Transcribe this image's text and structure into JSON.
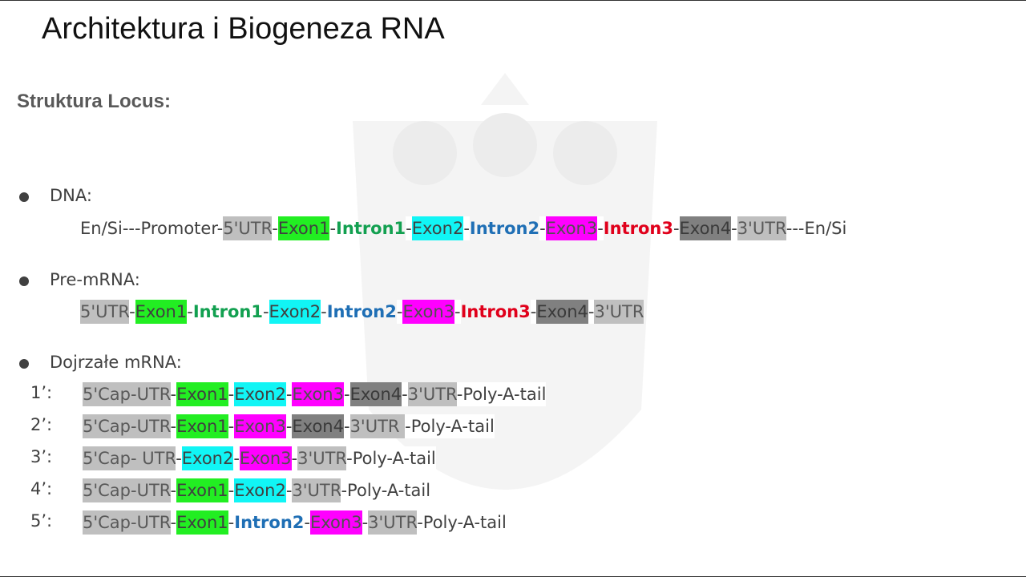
{
  "title": "Architektura i Biogeneza RNA",
  "subtitle": "Struktura Locus:",
  "sections": [
    {
      "heading": "DNA:",
      "rows": [
        {
          "segments": [
            {
              "text": "En/Si---Promoter-",
              "kind": "plain"
            },
            {
              "text": "5'UTR",
              "kind": "utr"
            },
            {
              "text": "-",
              "kind": "plain"
            },
            {
              "text": "Exon1",
              "kind": "exon1"
            },
            {
              "text": "-",
              "kind": "plain"
            },
            {
              "text": "Intron1",
              "kind": "intron1"
            },
            {
              "text": "-",
              "kind": "plain"
            },
            {
              "text": "Exon2",
              "kind": "exon2"
            },
            {
              "text": "-",
              "kind": "plain"
            },
            {
              "text": "Intron2",
              "kind": "intron2"
            },
            {
              "text": "-",
              "kind": "plain"
            },
            {
              "text": "Exon3",
              "kind": "exon3"
            },
            {
              "text": "-",
              "kind": "plain"
            },
            {
              "text": "Intron3",
              "kind": "intron3"
            },
            {
              "text": "-",
              "kind": "plain"
            },
            {
              "text": "Exon4",
              "kind": "exon4"
            },
            {
              "text": "-",
              "kind": "plain"
            },
            {
              "text": "3'UTR",
              "kind": "utr"
            },
            {
              "text": "---En/Si",
              "kind": "plain"
            }
          ]
        }
      ]
    },
    {
      "heading": "Pre-mRNA:",
      "rows": [
        {
          "segments": [
            {
              "text": "5'UTR",
              "kind": "utr"
            },
            {
              "text": "-",
              "kind": "plain"
            },
            {
              "text": "Exon1",
              "kind": "exon1"
            },
            {
              "text": "-",
              "kind": "plain"
            },
            {
              "text": "Intron1",
              "kind": "intron1"
            },
            {
              "text": "-",
              "kind": "plain"
            },
            {
              "text": "Exon2",
              "kind": "exon2"
            },
            {
              "text": "-",
              "kind": "plain"
            },
            {
              "text": "Intron2",
              "kind": "intron2"
            },
            {
              "text": "-",
              "kind": "plain"
            },
            {
              "text": "Exon3",
              "kind": "exon3"
            },
            {
              "text": "-",
              "kind": "plain"
            },
            {
              "text": "Intron3",
              "kind": "intron3"
            },
            {
              "text": "-",
              "kind": "plain"
            },
            {
              "text": "Exon4",
              "kind": "exon4"
            },
            {
              "text": "-",
              "kind": "plain"
            },
            {
              "text": "3'UTR",
              "kind": "utr"
            }
          ]
        }
      ]
    },
    {
      "heading": "Dojrzałe mRNA:",
      "rows": [
        {
          "label": "1’:",
          "segments": [
            {
              "text": "5'Cap-UTR",
              "kind": "utr"
            },
            {
              "text": "-",
              "kind": "plain"
            },
            {
              "text": "Exon1",
              "kind": "exon1"
            },
            {
              "text": "-",
              "kind": "plain"
            },
            {
              "text": "Exon2",
              "kind": "exon2"
            },
            {
              "text": "-",
              "kind": "plain"
            },
            {
              "text": "Exon3",
              "kind": "exon3"
            },
            {
              "text": "-",
              "kind": "plain"
            },
            {
              "text": "Exon4",
              "kind": "exon4"
            },
            {
              "text": "-",
              "kind": "plain"
            },
            {
              "text": "3'UTR",
              "kind": "utr"
            },
            {
              "text": "-Poly-A-tail",
              "kind": "plain"
            }
          ]
        },
        {
          "label": "2’:",
          "segments": [
            {
              "text": "5'Cap-UTR",
              "kind": "utr"
            },
            {
              "text": "-",
              "kind": "plain"
            },
            {
              "text": "Exon1",
              "kind": "exon1"
            },
            {
              "text": "-",
              "kind": "plain"
            },
            {
              "text": "Exon3",
              "kind": "exon3"
            },
            {
              "text": "-",
              "kind": "plain"
            },
            {
              "text": "Exon4",
              "kind": "exon4"
            },
            {
              "text": "-",
              "kind": "plain"
            },
            {
              "text": "3'UTR ",
              "kind": "utr"
            },
            {
              "text": "-Poly-A-tail",
              "kind": "plain"
            }
          ]
        },
        {
          "label": "3’:",
          "segments": [
            {
              "text": "5'Cap- UTR",
              "kind": "utr"
            },
            {
              "text": "-",
              "kind": "plain"
            },
            {
              "text": "Exon2",
              "kind": "exon2"
            },
            {
              "text": "-",
              "kind": "plain"
            },
            {
              "text": "Exon3",
              "kind": "exon3"
            },
            {
              "text": "-",
              "kind": "plain"
            },
            {
              "text": "3'UTR",
              "kind": "utr"
            },
            {
              "text": "-Poly-A-tail",
              "kind": "plain"
            }
          ]
        },
        {
          "label": "4’:",
          "segments": [
            {
              "text": "5'Cap-UTR",
              "kind": "utr"
            },
            {
              "text": "-",
              "kind": "plain"
            },
            {
              "text": "Exon1",
              "kind": "exon1"
            },
            {
              "text": "-",
              "kind": "plain"
            },
            {
              "text": "Exon2",
              "kind": "exon2"
            },
            {
              "text": "-",
              "kind": "plain"
            },
            {
              "text": "3'UTR",
              "kind": "utr"
            },
            {
              "text": "-Poly-A-tail",
              "kind": "plain"
            }
          ]
        },
        {
          "label": "5’:",
          "segments": [
            {
              "text": "5'Cap-UTR",
              "kind": "utr"
            },
            {
              "text": "-",
              "kind": "plain"
            },
            {
              "text": "Exon1",
              "kind": "exon1"
            },
            {
              "text": "-",
              "kind": "plain"
            },
            {
              "text": "Intron2",
              "kind": "intron2"
            },
            {
              "text": "-",
              "kind": "plain"
            },
            {
              "text": "Exon3",
              "kind": "exon3"
            },
            {
              "text": "-",
              "kind": "plain"
            },
            {
              "text": "3'UTR",
              "kind": "utr"
            },
            {
              "text": "-Poly-A-tail",
              "kind": "plain"
            }
          ]
        }
      ]
    }
  ]
}
